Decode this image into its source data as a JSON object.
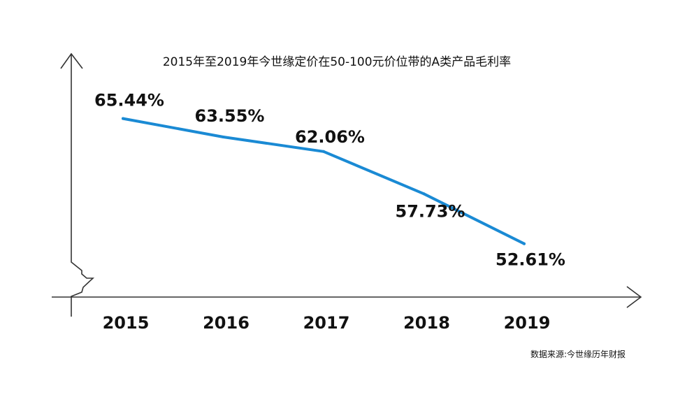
{
  "chart_data": {
    "type": "line",
    "title": "2015年至2019年今世缘定价在50-100元价位带的A类产品毛利率",
    "categories": [
      "2015",
      "2016",
      "2017",
      "2018",
      "2019"
    ],
    "series": [
      {
        "values": [
          65.44,
          63.55,
          62.06,
          57.73,
          52.61
        ],
        "labels": [
          "65.44%",
          "63.55%",
          "62.06%",
          "57.73%",
          "52.61%"
        ],
        "color": "#1a8ad4"
      }
    ],
    "ylim": [
      45,
      72
    ],
    "grid": false,
    "legend": "none",
    "source": "数据来源:今世缘历年财报"
  }
}
